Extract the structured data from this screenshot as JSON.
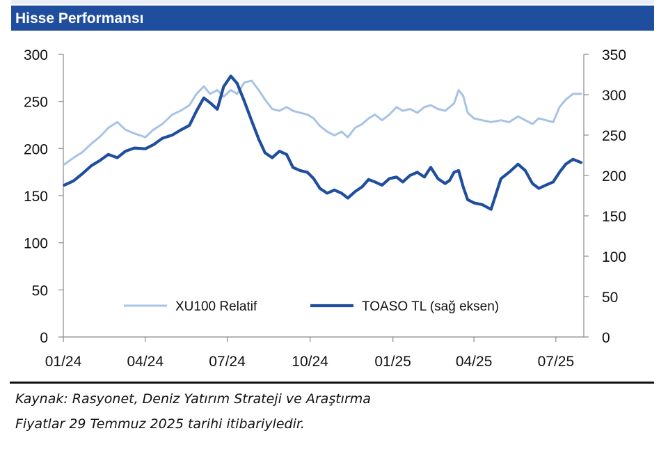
{
  "header": {
    "title": "Hisse Performansı"
  },
  "footer": {
    "source": "Kaynak: Rasyonet, Deniz Yatırım Strateji ve Araştırma",
    "note": "Fiyatlar 29 Temmuz 2025 tarihi itibariyledir."
  },
  "colors": {
    "header_bg": "#1f4e9e",
    "series_light": "#a6c3e6",
    "series_dark": "#1f4e9e"
  },
  "chart_data": {
    "type": "line",
    "grid": false,
    "legend_position": "bottom-center",
    "x_tick_labels": [
      "01/24",
      "04/24",
      "07/24",
      "10/24",
      "01/25",
      "04/25",
      "07/25"
    ],
    "left_axis": {
      "range": [
        0,
        300
      ],
      "ticks": [
        "0",
        "50",
        "100",
        "150",
        "200",
        "250",
        "300"
      ]
    },
    "right_axis": {
      "range": [
        0,
        350
      ],
      "ticks": [
        "0",
        "50",
        "100",
        "150",
        "200",
        "250",
        "300",
        "350"
      ]
    },
    "series": [
      {
        "name": "XU100 Relatif",
        "axis": "left",
        "color": "#a6c3e6",
        "points": [
          [
            "2024-01-02",
            183
          ],
          [
            "2024-01-12",
            190
          ],
          [
            "2024-01-22",
            196
          ],
          [
            "2024-02-01",
            205
          ],
          [
            "2024-02-10",
            212
          ],
          [
            "2024-02-20",
            222
          ],
          [
            "2024-03-01",
            228
          ],
          [
            "2024-03-10",
            220
          ],
          [
            "2024-03-20",
            216
          ],
          [
            "2024-04-01",
            212
          ],
          [
            "2024-04-10",
            220
          ],
          [
            "2024-04-20",
            226
          ],
          [
            "2024-05-01",
            236
          ],
          [
            "2024-05-10",
            240
          ],
          [
            "2024-05-20",
            246
          ],
          [
            "2024-05-28",
            258
          ],
          [
            "2024-06-05",
            266
          ],
          [
            "2024-06-12",
            258
          ],
          [
            "2024-06-20",
            262
          ],
          [
            "2024-06-27",
            255
          ],
          [
            "2024-07-05",
            262
          ],
          [
            "2024-07-12",
            258
          ],
          [
            "2024-07-20",
            270
          ],
          [
            "2024-07-28",
            272
          ],
          [
            "2024-08-05",
            262
          ],
          [
            "2024-08-12",
            252
          ],
          [
            "2024-08-20",
            242
          ],
          [
            "2024-08-28",
            240
          ],
          [
            "2024-09-05",
            244
          ],
          [
            "2024-09-12",
            240
          ],
          [
            "2024-09-20",
            238
          ],
          [
            "2024-09-28",
            236
          ],
          [
            "2024-10-05",
            232
          ],
          [
            "2024-10-12",
            224
          ],
          [
            "2024-10-20",
            218
          ],
          [
            "2024-10-28",
            214
          ],
          [
            "2024-11-05",
            218
          ],
          [
            "2024-11-12",
            212
          ],
          [
            "2024-11-20",
            222
          ],
          [
            "2024-11-28",
            226
          ],
          [
            "2024-12-05",
            232
          ],
          [
            "2024-12-12",
            236
          ],
          [
            "2024-12-20",
            230
          ],
          [
            "2024-12-28",
            236
          ],
          [
            "2025-01-05",
            244
          ],
          [
            "2025-01-12",
            240
          ],
          [
            "2025-01-20",
            242
          ],
          [
            "2025-01-28",
            238
          ],
          [
            "2025-02-05",
            244
          ],
          [
            "2025-02-12",
            246
          ],
          [
            "2025-02-20",
            242
          ],
          [
            "2025-02-28",
            240
          ],
          [
            "2025-03-05",
            244
          ],
          [
            "2025-03-10",
            248
          ],
          [
            "2025-03-15",
            262
          ],
          [
            "2025-03-20",
            256
          ],
          [
            "2025-03-25",
            238
          ],
          [
            "2025-04-01",
            232
          ],
          [
            "2025-04-10",
            230
          ],
          [
            "2025-04-20",
            228
          ],
          [
            "2025-05-01",
            230
          ],
          [
            "2025-05-10",
            228
          ],
          [
            "2025-05-20",
            234
          ],
          [
            "2025-05-28",
            230
          ],
          [
            "2025-06-05",
            226
          ],
          [
            "2025-06-12",
            232
          ],
          [
            "2025-06-20",
            230
          ],
          [
            "2025-06-28",
            228
          ],
          [
            "2025-07-05",
            244
          ],
          [
            "2025-07-12",
            252
          ],
          [
            "2025-07-20",
            258
          ],
          [
            "2025-07-29",
            258
          ]
        ]
      },
      {
        "name": "TOASO TL (sağ eksen)",
        "axis": "right",
        "color": "#1f4e9e",
        "points": [
          [
            "2024-01-02",
            188
          ],
          [
            "2024-01-12",
            193
          ],
          [
            "2024-01-22",
            202
          ],
          [
            "2024-02-01",
            212
          ],
          [
            "2024-02-10",
            218
          ],
          [
            "2024-02-20",
            226
          ],
          [
            "2024-03-01",
            222
          ],
          [
            "2024-03-10",
            230
          ],
          [
            "2024-03-20",
            234
          ],
          [
            "2024-04-01",
            233
          ],
          [
            "2024-04-10",
            238
          ],
          [
            "2024-04-20",
            246
          ],
          [
            "2024-05-01",
            250
          ],
          [
            "2024-05-10",
            256
          ],
          [
            "2024-05-20",
            262
          ],
          [
            "2024-05-28",
            280
          ],
          [
            "2024-06-05",
            296
          ],
          [
            "2024-06-12",
            290
          ],
          [
            "2024-06-20",
            282
          ],
          [
            "2024-06-27",
            310
          ],
          [
            "2024-07-05",
            323
          ],
          [
            "2024-07-12",
            314
          ],
          [
            "2024-07-20",
            292
          ],
          [
            "2024-07-28",
            268
          ],
          [
            "2024-08-05",
            245
          ],
          [
            "2024-08-12",
            228
          ],
          [
            "2024-08-20",
            222
          ],
          [
            "2024-08-28",
            230
          ],
          [
            "2024-09-05",
            226
          ],
          [
            "2024-09-12",
            210
          ],
          [
            "2024-09-20",
            206
          ],
          [
            "2024-09-28",
            204
          ],
          [
            "2024-10-05",
            196
          ],
          [
            "2024-10-12",
            184
          ],
          [
            "2024-10-20",
            178
          ],
          [
            "2024-10-28",
            182
          ],
          [
            "2024-11-05",
            178
          ],
          [
            "2024-11-12",
            172
          ],
          [
            "2024-11-20",
            180
          ],
          [
            "2024-11-28",
            186
          ],
          [
            "2024-12-05",
            195
          ],
          [
            "2024-12-12",
            192
          ],
          [
            "2024-12-20",
            188
          ],
          [
            "2024-12-28",
            196
          ],
          [
            "2025-01-05",
            198
          ],
          [
            "2025-01-12",
            192
          ],
          [
            "2025-01-20",
            200
          ],
          [
            "2025-01-28",
            204
          ],
          [
            "2025-02-05",
            198
          ],
          [
            "2025-02-12",
            210
          ],
          [
            "2025-02-20",
            196
          ],
          [
            "2025-02-28",
            190
          ],
          [
            "2025-03-05",
            194
          ],
          [
            "2025-03-10",
            204
          ],
          [
            "2025-03-15",
            206
          ],
          [
            "2025-03-20",
            186
          ],
          [
            "2025-03-25",
            170
          ],
          [
            "2025-04-01",
            166
          ],
          [
            "2025-04-10",
            164
          ],
          [
            "2025-04-20",
            158
          ],
          [
            "2025-05-01",
            196
          ],
          [
            "2025-05-10",
            204
          ],
          [
            "2025-05-20",
            214
          ],
          [
            "2025-05-28",
            206
          ],
          [
            "2025-06-05",
            190
          ],
          [
            "2025-06-12",
            184
          ],
          [
            "2025-06-20",
            188
          ],
          [
            "2025-06-28",
            192
          ],
          [
            "2025-07-05",
            204
          ],
          [
            "2025-07-12",
            214
          ],
          [
            "2025-07-20",
            220
          ],
          [
            "2025-07-29",
            216
          ]
        ]
      }
    ]
  }
}
